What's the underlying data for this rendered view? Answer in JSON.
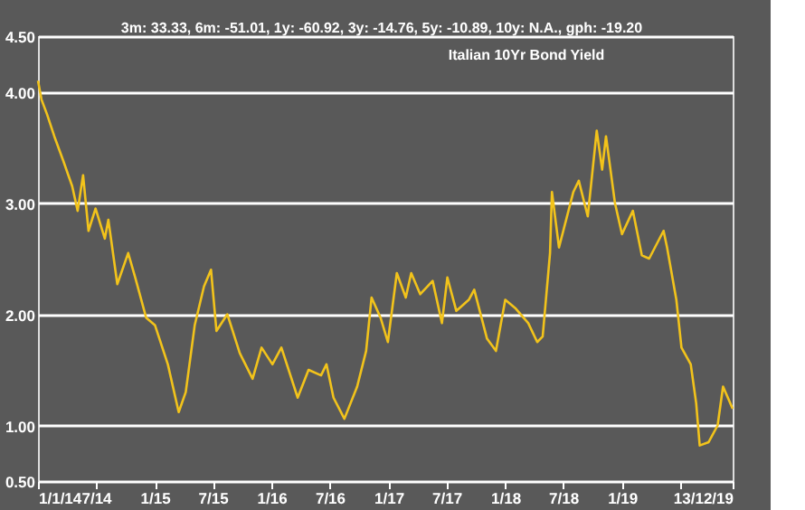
{
  "chart_data": {
    "type": "line",
    "title": "Italian 10Yr Bond Yield",
    "subtitle": "3m: 33.33,    6m: -51.01,    1y: -60.92,    3y: -14.76,    5y: -10.89,    10y: N.A.,    gph: -19.20",
    "x": [
      "2014-01-01",
      "2014-01-12",
      "2014-01-29",
      "2014-02-21",
      "2014-03-21",
      "2014-04-18",
      "2014-05-05",
      "2014-05-22",
      "2014-06-08",
      "2014-06-30",
      "2014-07-29",
      "2014-08-09",
      "2014-09-06",
      "2014-10-10",
      "2014-11-01",
      "2014-12-05",
      "2015-01-02",
      "2015-02-11",
      "2015-03-17",
      "2015-04-08",
      "2015-05-06",
      "2015-06-04",
      "2015-06-26",
      "2015-07-13",
      "2015-08-16",
      "2015-09-24",
      "2015-11-03",
      "2015-12-01",
      "2016-01-04",
      "2016-02-01",
      "2016-03-23",
      "2016-04-26",
      "2016-06-04",
      "2016-06-21",
      "2016-07-13",
      "2016-08-16",
      "2016-09-25",
      "2016-10-23",
      "2016-11-09",
      "2016-12-07",
      "2016-12-30",
      "2017-01-27",
      "2017-02-24",
      "2017-03-13",
      "2017-04-10",
      "2017-05-19",
      "2017-06-17",
      "2017-07-04",
      "2017-08-01",
      "2017-09-09",
      "2017-09-26",
      "2017-11-05",
      "2017-12-03",
      "2018-01-01",
      "2018-02-03",
      "2018-03-14",
      "2018-04-11",
      "2018-04-28",
      "2018-05-21",
      "2018-05-27",
      "2018-06-18",
      "2018-08-02",
      "2018-08-19",
      "2018-09-16",
      "2018-10-14",
      "2018-10-31",
      "2018-11-12",
      "2018-12-10",
      "2019-01-01",
      "2019-02-04",
      "2019-03-04",
      "2019-03-27",
      "2019-05-11",
      "2019-05-22",
      "2019-06-20",
      "2019-07-06",
      "2019-08-04",
      "2019-08-21",
      "2019-09-01",
      "2019-09-29",
      "2019-10-27",
      "2019-11-13",
      "2019-12-13"
    ],
    "series": [
      {
        "color": "#f2c31b",
        "values": [
          4.1,
          3.93,
          3.8,
          3.6,
          3.38,
          3.15,
          2.93,
          3.25,
          2.75,
          2.95,
          2.68,
          2.85,
          2.27,
          2.55,
          2.33,
          1.97,
          1.9,
          1.55,
          1.12,
          1.3,
          1.9,
          2.25,
          2.4,
          1.85,
          2.0,
          1.65,
          1.42,
          1.7,
          1.55,
          1.7,
          1.25,
          1.5,
          1.45,
          1.55,
          1.25,
          1.06,
          1.35,
          1.67,
          2.15,
          1.97,
          1.75,
          2.37,
          2.15,
          2.37,
          2.18,
          2.3,
          1.92,
          2.33,
          2.03,
          2.13,
          2.22,
          1.78,
          1.67,
          2.13,
          2.05,
          1.92,
          1.75,
          1.8,
          2.55,
          3.1,
          2.6,
          3.1,
          3.2,
          2.88,
          3.65,
          3.3,
          3.6,
          3.0,
          2.72,
          2.93,
          2.53,
          2.5,
          2.75,
          2.6,
          2.13,
          1.7,
          1.55,
          1.2,
          0.82,
          0.85,
          1.0,
          1.35,
          1.15
        ]
      }
    ],
    "xlim": [
      "2014-01-01",
      "2019-12-13"
    ],
    "xticks": [
      {
        "value": "2014-01-01",
        "label": "1/1/14"
      },
      {
        "value": "2014-07-01",
        "label": "7/14"
      },
      {
        "value": "2015-01-01",
        "label": "1/15"
      },
      {
        "value": "2015-07-01",
        "label": "7/15"
      },
      {
        "value": "2016-01-01",
        "label": "1/16"
      },
      {
        "value": "2016-07-01",
        "label": "7/16"
      },
      {
        "value": "2017-01-01",
        "label": "1/17"
      },
      {
        "value": "2017-07-01",
        "label": "7/17"
      },
      {
        "value": "2018-01-01",
        "label": "1/18"
      },
      {
        "value": "2018-07-01",
        "label": "7/18"
      },
      {
        "value": "2019-01-01",
        "label": "1/19"
      },
      {
        "value": "2019-07-01",
        "label": null
      },
      {
        "value": "2019-12-13",
        "label": "13/12/19"
      }
    ],
    "ylim": [
      0.5,
      4.5
    ],
    "yticks": [
      {
        "value": 0.5,
        "label": "0.50"
      },
      {
        "value": 1,
        "label": "1.00"
      },
      {
        "value": 2,
        "label": "2.00"
      },
      {
        "value": 3,
        "label": "3.00"
      },
      {
        "value": 4,
        "label": "4.00"
      },
      {
        "value": 4.5,
        "label": "4.50"
      }
    ],
    "grid": "y",
    "marker": "none",
    "line_style": "solid"
  }
}
